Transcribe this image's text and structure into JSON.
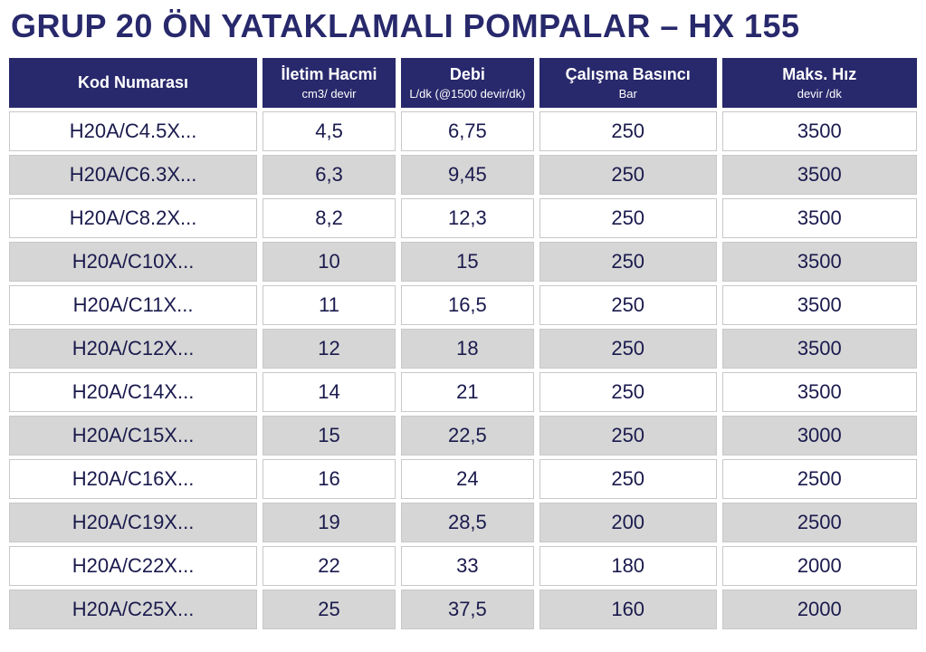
{
  "title": "GRUP 20 ÖN YATAKLAMALI POMPALAR – HX 155",
  "table": {
    "header_bg": "#28286c",
    "header_fg": "#ffffff",
    "row_bg": "#ffffff",
    "row_alt_bg": "#d6d6d6",
    "cell_border": "#c8c8c8",
    "text_color": "#1a1a4d",
    "columns": [
      {
        "label": "Kod Numarası",
        "sub": ""
      },
      {
        "label": "İletim Hacmi",
        "sub": "cm3/ devir"
      },
      {
        "label": "Debi",
        "sub": "L/dk\n(@1500 devir/dk)"
      },
      {
        "label": "Çalışma Basıncı",
        "sub": "Bar"
      },
      {
        "label": "Maks. Hız",
        "sub": "devir /dk"
      }
    ],
    "rows": [
      [
        "H20A/C4.5X...",
        "4,5",
        "6,75",
        "250",
        "3500"
      ],
      [
        "H20A/C6.3X...",
        "6,3",
        "9,45",
        "250",
        "3500"
      ],
      [
        "H20A/C8.2X...",
        "8,2",
        "12,3",
        "250",
        "3500"
      ],
      [
        "H20A/C10X...",
        "10",
        "15",
        "250",
        "3500"
      ],
      [
        "H20A/C11X...",
        "11",
        "16,5",
        "250",
        "3500"
      ],
      [
        "H20A/C12X...",
        "12",
        "18",
        "250",
        "3500"
      ],
      [
        "H20A/C14X...",
        "14",
        "21",
        "250",
        "3500"
      ],
      [
        "H20A/C15X...",
        "15",
        "22,5",
        "250",
        "3000"
      ],
      [
        "H20A/C16X...",
        "16",
        "24",
        "250",
        "2500"
      ],
      [
        "H20A/C19X...",
        "19",
        "28,5",
        "200",
        "2500"
      ],
      [
        "H20A/C22X...",
        "22",
        "33",
        "180",
        "2000"
      ],
      [
        "H20A/C25X...",
        "25",
        "37,5",
        "160",
        "2000"
      ]
    ]
  }
}
